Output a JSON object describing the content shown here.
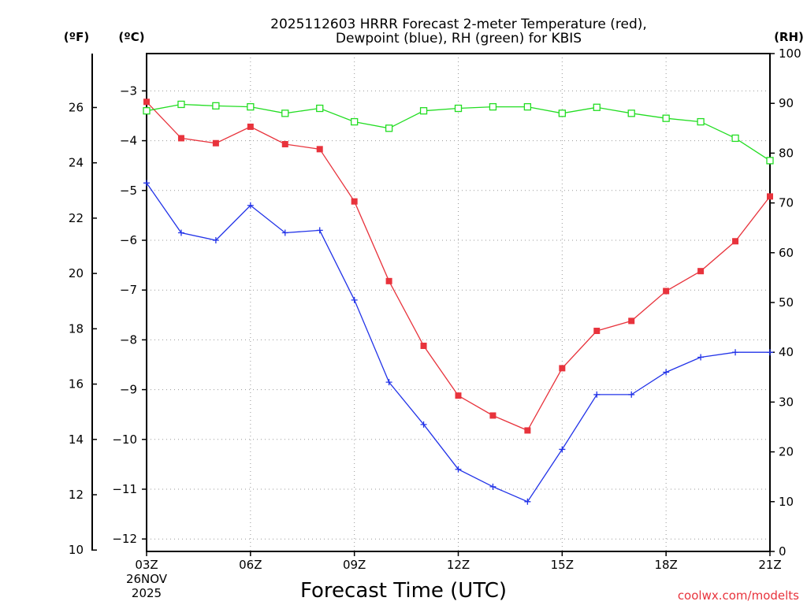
{
  "chart_data": {
    "type": "line",
    "title": [
      "2025112603 HRRR Forecast 2-meter Temperature (red),",
      "Dewpoint (blue), RH (green) for KBIS"
    ],
    "xlabel": "Forecast Time (UTC)",
    "credit": "coolwx.com/modelts",
    "units": {
      "fahrenheit": "(ºF)",
      "celsius": "(ºC)",
      "rh": "(RH)"
    },
    "x_hours": [
      3,
      4,
      5,
      6,
      7,
      8,
      9,
      10,
      11,
      12,
      13,
      14,
      15,
      16,
      17,
      18,
      19,
      20,
      21
    ],
    "x_ticks": [
      {
        "hour": 3,
        "label": "03Z",
        "date": "26NOV",
        "year": "2025"
      },
      {
        "hour": 6,
        "label": "06Z"
      },
      {
        "hour": 9,
        "label": "09Z"
      },
      {
        "hour": 12,
        "label": "12Z"
      },
      {
        "hour": 15,
        "label": "15Z"
      },
      {
        "hour": 18,
        "label": "18Z"
      },
      {
        "hour": 21,
        "label": "21Z"
      }
    ],
    "celsius_axis": {
      "range": [
        -12.25,
        -2.25
      ],
      "ticks": [
        -3,
        -4,
        -5,
        -6,
        -7,
        -8,
        -9,
        -10,
        -11,
        -12
      ],
      "tick_labels": [
        "−3",
        "−4",
        "−5",
        "−6",
        "−7",
        "−8",
        "−9",
        "−10",
        "−11",
        "−12"
      ]
    },
    "fahrenheit_axis": {
      "range": [
        9.95,
        27.95
      ],
      "ticks": [
        10,
        12,
        14,
        16,
        18,
        20,
        22,
        24,
        26
      ],
      "tick_labels": [
        "10",
        "12",
        "14",
        "16",
        "18",
        "20",
        "22",
        "24",
        "26"
      ]
    },
    "rh_axis": {
      "range": [
        0,
        100
      ],
      "ticks": [
        0,
        10,
        20,
        30,
        40,
        50,
        60,
        70,
        80,
        90,
        100
      ],
      "tick_labels": [
        "0",
        "10",
        "20",
        "30",
        "40",
        "50",
        "60",
        "70",
        "80",
        "90",
        "100"
      ]
    },
    "series": [
      {
        "name": "2-meter Temperature",
        "units": "°C",
        "color": "#e8333c",
        "marker": "filled-square",
        "values": [
          -3.22,
          -3.95,
          -4.05,
          -3.72,
          -4.07,
          -4.17,
          -5.22,
          -6.82,
          -8.12,
          -9.12,
          -9.52,
          -9.82,
          -8.57,
          -7.82,
          -7.62,
          -7.02,
          -6.62,
          -6.02,
          -5.12
        ]
      },
      {
        "name": "Dewpoint",
        "units": "°C",
        "color": "#2233e8",
        "marker": "plus",
        "values": [
          -4.85,
          -5.85,
          -6.0,
          -5.3,
          -5.85,
          -5.8,
          -7.2,
          -8.85,
          -9.7,
          -10.6,
          -10.95,
          -11.25,
          -10.2,
          -9.1,
          -9.1,
          -8.65,
          -8.35,
          -8.25,
          -8.25
        ]
      },
      {
        "name": "RH",
        "units": "%",
        "color": "#22dd22",
        "marker": "open-square",
        "values": [
          88.5,
          89.8,
          89.5,
          89.3,
          88.0,
          89.0,
          86.3,
          85.0,
          88.5,
          89.0,
          89.3,
          89.3,
          88.0,
          89.2,
          88.0,
          87.0,
          86.3,
          83.0,
          78.5
        ]
      }
    ]
  }
}
